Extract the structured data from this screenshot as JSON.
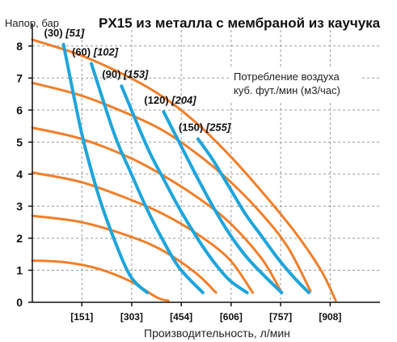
{
  "chart_data": {
    "type": "line",
    "title": "PX15 из металла с мембраной из каучука",
    "ylabel": "Напор, бар",
    "xlabel": "Производительность, л/мин",
    "note": [
      "Потребление воздуха",
      "куб. фут./мин (м3/час)"
    ],
    "ylim": [
      0,
      8.5
    ],
    "xlim": [
      0,
      1060
    ],
    "yticks": [
      "0",
      "1",
      "2",
      "3",
      "4",
      "5",
      "6",
      "7",
      "8"
    ],
    "xticks": [
      {
        "value": 151,
        "label": "[151]"
      },
      {
        "value": 303,
        "label": "[303]"
      },
      {
        "value": 454,
        "label": "[454]"
      },
      {
        "value": 606,
        "label": "[606]"
      },
      {
        "value": 757,
        "label": "[757]"
      },
      {
        "value": 908,
        "label": "[908]"
      }
    ],
    "grid": true,
    "colors": {
      "pressure": "#f07f2a",
      "air": "#1ea5dc"
    },
    "pressure_curves": [
      {
        "x": [
          0,
          150,
          300,
          400,
          500,
          600,
          700,
          800,
          880,
          925
        ],
        "y": [
          8.2,
          7.7,
          7.0,
          6.4,
          5.6,
          4.6,
          3.45,
          2.2,
          1.0,
          0.05
        ]
      },
      {
        "x": [
          0,
          150,
          300,
          400,
          500,
          600,
          700,
          780,
          848
        ],
        "y": [
          6.85,
          6.45,
          5.85,
          5.35,
          4.65,
          3.8,
          2.75,
          1.7,
          0.35
        ]
      },
      {
        "x": [
          0,
          150,
          300,
          400,
          500,
          600,
          700,
          760
        ],
        "y": [
          5.45,
          5.1,
          4.5,
          3.95,
          3.3,
          2.5,
          1.35,
          0.3
        ]
      },
      {
        "x": [
          0,
          150,
          300,
          400,
          500,
          600,
          672
        ],
        "y": [
          4.05,
          3.75,
          3.2,
          2.75,
          2.15,
          1.35,
          0.3
        ]
      },
      {
        "x": [
          0,
          150,
          300,
          400,
          500,
          560
        ],
        "y": [
          2.7,
          2.5,
          2.05,
          1.6,
          0.9,
          0.3
        ]
      },
      {
        "x": [
          0,
          100,
          200,
          300,
          380,
          415
        ],
        "y": [
          1.3,
          1.25,
          1.05,
          0.65,
          0.15,
          0.05
        ]
      }
    ],
    "air_curves": [
      {
        "label_main": "(30)",
        "label_italic": "[51]",
        "x": [
          95,
          150,
          200,
          250,
          300,
          350
        ],
        "y": [
          8.05,
          5.3,
          3.4,
          1.95,
          0.8,
          0.3
        ]
      },
      {
        "label_main": "(60)",
        "label_italic": "[102]",
        "x": [
          180,
          250,
          300,
          350,
          400,
          450,
          520
        ],
        "y": [
          7.45,
          5.25,
          4.05,
          2.9,
          1.9,
          1.05,
          0.3
        ]
      },
      {
        "label_main": "(90)",
        "label_italic": "[153]",
        "x": [
          272,
          350,
          400,
          450,
          500,
          550,
          600,
          655
        ],
        "y": [
          6.75,
          4.85,
          3.85,
          2.9,
          2.05,
          1.3,
          0.7,
          0.3
        ]
      },
      {
        "label_main": "(120)",
        "label_italic": "[204]",
        "x": [
          400,
          450,
          500,
          550,
          600,
          650,
          700,
          760
        ],
        "y": [
          5.95,
          4.95,
          3.95,
          3.0,
          2.15,
          1.45,
          0.9,
          0.3
        ]
      },
      {
        "label_main": "(150)",
        "label_italic": "[255]",
        "x": [
          505,
          550,
          600,
          650,
          700,
          750,
          800,
          843
        ],
        "y": [
          5.1,
          4.45,
          3.6,
          2.75,
          2.05,
          1.35,
          0.75,
          0.3
        ]
      }
    ]
  }
}
